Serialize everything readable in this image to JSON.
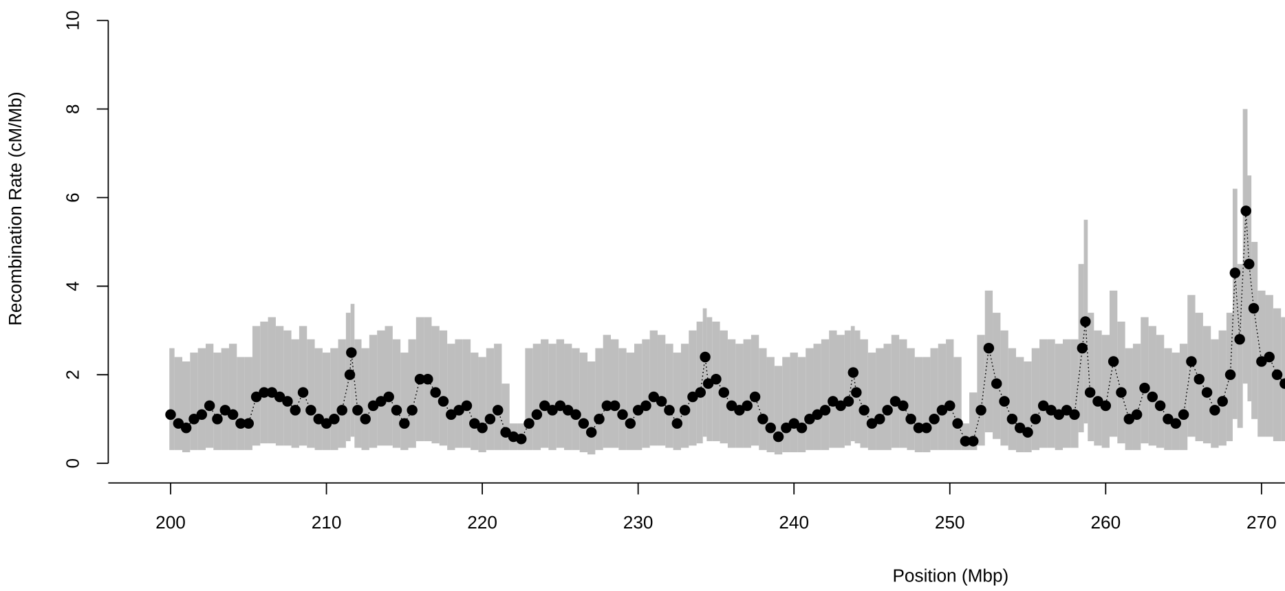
{
  "chart_data": {
    "type": "scatter",
    "x_label": "Position (Mbp)",
    "y_label": "Recombination Rate (cM/Mb)",
    "x": [
      200,
      200.5,
      201,
      201.5,
      202,
      202.5,
      203,
      203.5,
      204,
      204.5,
      205,
      205.5,
      206,
      206.5,
      207,
      207.5,
      208,
      208.5,
      209,
      209.5,
      210,
      210.5,
      211,
      211.5,
      211.6,
      212,
      212.5,
      213,
      213.5,
      214,
      214.5,
      215,
      215.5,
      216,
      216.5,
      217,
      217.5,
      218,
      218.5,
      219,
      219.5,
      220,
      220.5,
      221,
      221.5,
      222,
      222.5,
      223,
      223.5,
      224,
      224.5,
      225,
      225.5,
      226,
      226.5,
      227,
      227.5,
      228,
      228.5,
      229,
      229.5,
      230,
      230.5,
      231,
      231.5,
      232,
      232.5,
      233,
      233.5,
      234,
      234.3,
      234.5,
      235,
      235.5,
      236,
      236.5,
      237,
      237.5,
      238,
      238.5,
      239,
      239.5,
      240,
      240.5,
      241,
      241.5,
      242,
      242.5,
      243,
      243.5,
      243.8,
      244,
      244.5,
      245,
      245.5,
      246,
      246.5,
      247,
      247.5,
      248,
      248.5,
      249,
      249.5,
      250,
      250.5,
      251,
      251.5,
      252,
      252.5,
      253,
      253.5,
      254,
      254.5,
      255,
      255.5,
      256,
      256.5,
      257,
      257.5,
      258,
      258.5,
      258.7,
      259,
      259.5,
      260,
      260.5,
      261,
      261.5,
      262,
      262.5,
      263,
      263.5,
      264,
      264.5,
      265,
      265.5,
      266,
      266.5,
      267,
      267.5,
      268,
      268.3,
      268.6,
      269,
      269.2,
      269.5,
      270,
      270.5,
      271,
      271.5
    ],
    "values": [
      1.1,
      0.9,
      0.8,
      1.0,
      1.1,
      1.3,
      1.0,
      1.2,
      1.1,
      0.9,
      0.9,
      1.5,
      1.6,
      1.6,
      1.5,
      1.4,
      1.2,
      1.6,
      1.2,
      1.0,
      0.9,
      1.0,
      1.2,
      2.0,
      2.5,
      1.2,
      1.0,
      1.3,
      1.4,
      1.5,
      1.2,
      0.9,
      1.2,
      1.9,
      1.9,
      1.6,
      1.4,
      1.1,
      1.2,
      1.3,
      0.9,
      0.8,
      1.0,
      1.2,
      0.7,
      0.6,
      0.55,
      0.9,
      1.1,
      1.3,
      1.2,
      1.3,
      1.2,
      1.1,
      0.9,
      0.7,
      1.0,
      1.3,
      1.3,
      1.1,
      0.9,
      1.2,
      1.3,
      1.5,
      1.4,
      1.2,
      0.9,
      1.2,
      1.5,
      1.6,
      2.4,
      1.8,
      1.9,
      1.6,
      1.3,
      1.2,
      1.3,
      1.5,
      1.0,
      0.8,
      0.6,
      0.8,
      0.9,
      0.8,
      1.0,
      1.1,
      1.2,
      1.4,
      1.3,
      1.4,
      2.05,
      1.6,
      1.2,
      0.9,
      1.0,
      1.2,
      1.4,
      1.3,
      1.0,
      0.8,
      0.8,
      1.0,
      1.2,
      1.3,
      0.9,
      0.5,
      0.5,
      1.2,
      2.6,
      1.8,
      1.4,
      1.0,
      0.8,
      0.7,
      1.0,
      1.3,
      1.2,
      1.1,
      1.2,
      1.1,
      2.6,
      3.2,
      1.6,
      1.4,
      1.3,
      2.3,
      1.6,
      1.0,
      1.1,
      1.7,
      1.5,
      1.3,
      1.0,
      0.9,
      1.1,
      2.3,
      1.9,
      1.6,
      1.2,
      1.4,
      2.0,
      4.3,
      2.8,
      5.7,
      4.5,
      3.5,
      2.3,
      2.4,
      2.0,
      1.8
    ],
    "lower": [
      0.3,
      0.3,
      0.25,
      0.3,
      0.3,
      0.35,
      0.3,
      0.3,
      0.3,
      0.3,
      0.3,
      0.4,
      0.45,
      0.45,
      0.4,
      0.4,
      0.35,
      0.4,
      0.35,
      0.3,
      0.3,
      0.3,
      0.35,
      0.5,
      0.6,
      0.35,
      0.3,
      0.35,
      0.4,
      0.4,
      0.35,
      0.3,
      0.35,
      0.5,
      0.5,
      0.45,
      0.4,
      0.3,
      0.35,
      0.35,
      0.3,
      0.25,
      0.3,
      0.3,
      0.3,
      0.3,
      0.3,
      0.3,
      0.3,
      0.35,
      0.3,
      0.35,
      0.3,
      0.3,
      0.25,
      0.2,
      0.3,
      0.35,
      0.35,
      0.3,
      0.3,
      0.3,
      0.35,
      0.4,
      0.4,
      0.35,
      0.3,
      0.35,
      0.4,
      0.45,
      0.6,
      0.5,
      0.5,
      0.45,
      0.35,
      0.35,
      0.35,
      0.4,
      0.3,
      0.25,
      0.2,
      0.25,
      0.25,
      0.25,
      0.3,
      0.3,
      0.3,
      0.35,
      0.35,
      0.4,
      0.5,
      0.45,
      0.35,
      0.3,
      0.3,
      0.3,
      0.35,
      0.35,
      0.3,
      0.25,
      0.25,
      0.3,
      0.3,
      0.3,
      0.3,
      0.3,
      0.3,
      0.4,
      0.7,
      0.55,
      0.4,
      0.3,
      0.25,
      0.25,
      0.3,
      0.35,
      0.35,
      0.3,
      0.35,
      0.35,
      0.7,
      0.9,
      0.5,
      0.4,
      0.35,
      0.6,
      0.45,
      0.3,
      0.3,
      0.45,
      0.4,
      0.35,
      0.3,
      0.3,
      0.3,
      0.6,
      0.5,
      0.45,
      0.35,
      0.4,
      0.5,
      1.0,
      0.8,
      1.8,
      1.4,
      1.0,
      0.6,
      0.6,
      0.5,
      0.5
    ],
    "upper": [
      2.6,
      2.4,
      2.3,
      2.5,
      2.6,
      2.7,
      2.5,
      2.6,
      2.7,
      2.4,
      2.4,
      3.1,
      3.2,
      3.3,
      3.1,
      3.0,
      2.8,
      3.1,
      2.8,
      2.6,
      2.5,
      2.6,
      2.8,
      3.4,
      3.6,
      2.8,
      2.6,
      2.9,
      3.0,
      3.1,
      2.8,
      2.5,
      2.8,
      3.3,
      3.3,
      3.1,
      3.0,
      2.7,
      2.8,
      2.8,
      2.5,
      2.4,
      2.6,
      2.7,
      1.8,
      0.9,
      0.9,
      2.6,
      2.7,
      2.8,
      2.7,
      2.8,
      2.7,
      2.6,
      2.5,
      2.3,
      2.6,
      2.9,
      2.8,
      2.6,
      2.5,
      2.7,
      2.8,
      3.0,
      2.9,
      2.7,
      2.5,
      2.7,
      3.0,
      3.2,
      3.5,
      3.3,
      3.2,
      3.0,
      2.8,
      2.7,
      2.8,
      2.9,
      2.6,
      2.4,
      2.2,
      2.4,
      2.5,
      2.4,
      2.6,
      2.7,
      2.8,
      3.0,
      2.9,
      3.0,
      3.1,
      3.0,
      2.8,
      2.5,
      2.6,
      2.7,
      2.9,
      2.8,
      2.6,
      2.4,
      2.4,
      2.6,
      2.7,
      2.8,
      2.4,
      0.9,
      1.6,
      2.9,
      3.9,
      3.4,
      3.0,
      2.6,
      2.4,
      2.3,
      2.6,
      2.8,
      2.8,
      2.7,
      2.8,
      2.8,
      4.5,
      5.5,
      3.4,
      3.0,
      2.9,
      3.9,
      3.2,
      2.6,
      2.7,
      3.3,
      3.1,
      2.9,
      2.6,
      2.5,
      2.7,
      3.8,
      3.4,
      3.1,
      2.8,
      3.0,
      3.4,
      6.2,
      4.5,
      8.0,
      6.5,
      5.0,
      3.9,
      3.8,
      3.5,
      3.3
    ],
    "color": "#000000",
    "band_color": "#bebebe",
    "xlim": [
      196,
      271.5
    ],
    "xticks": [
      200,
      210,
      220,
      230,
      240,
      250,
      260,
      270
    ],
    "ylim": [
      0,
      10
    ],
    "yticks": [
      0,
      2,
      4,
      6,
      8,
      10
    ]
  }
}
